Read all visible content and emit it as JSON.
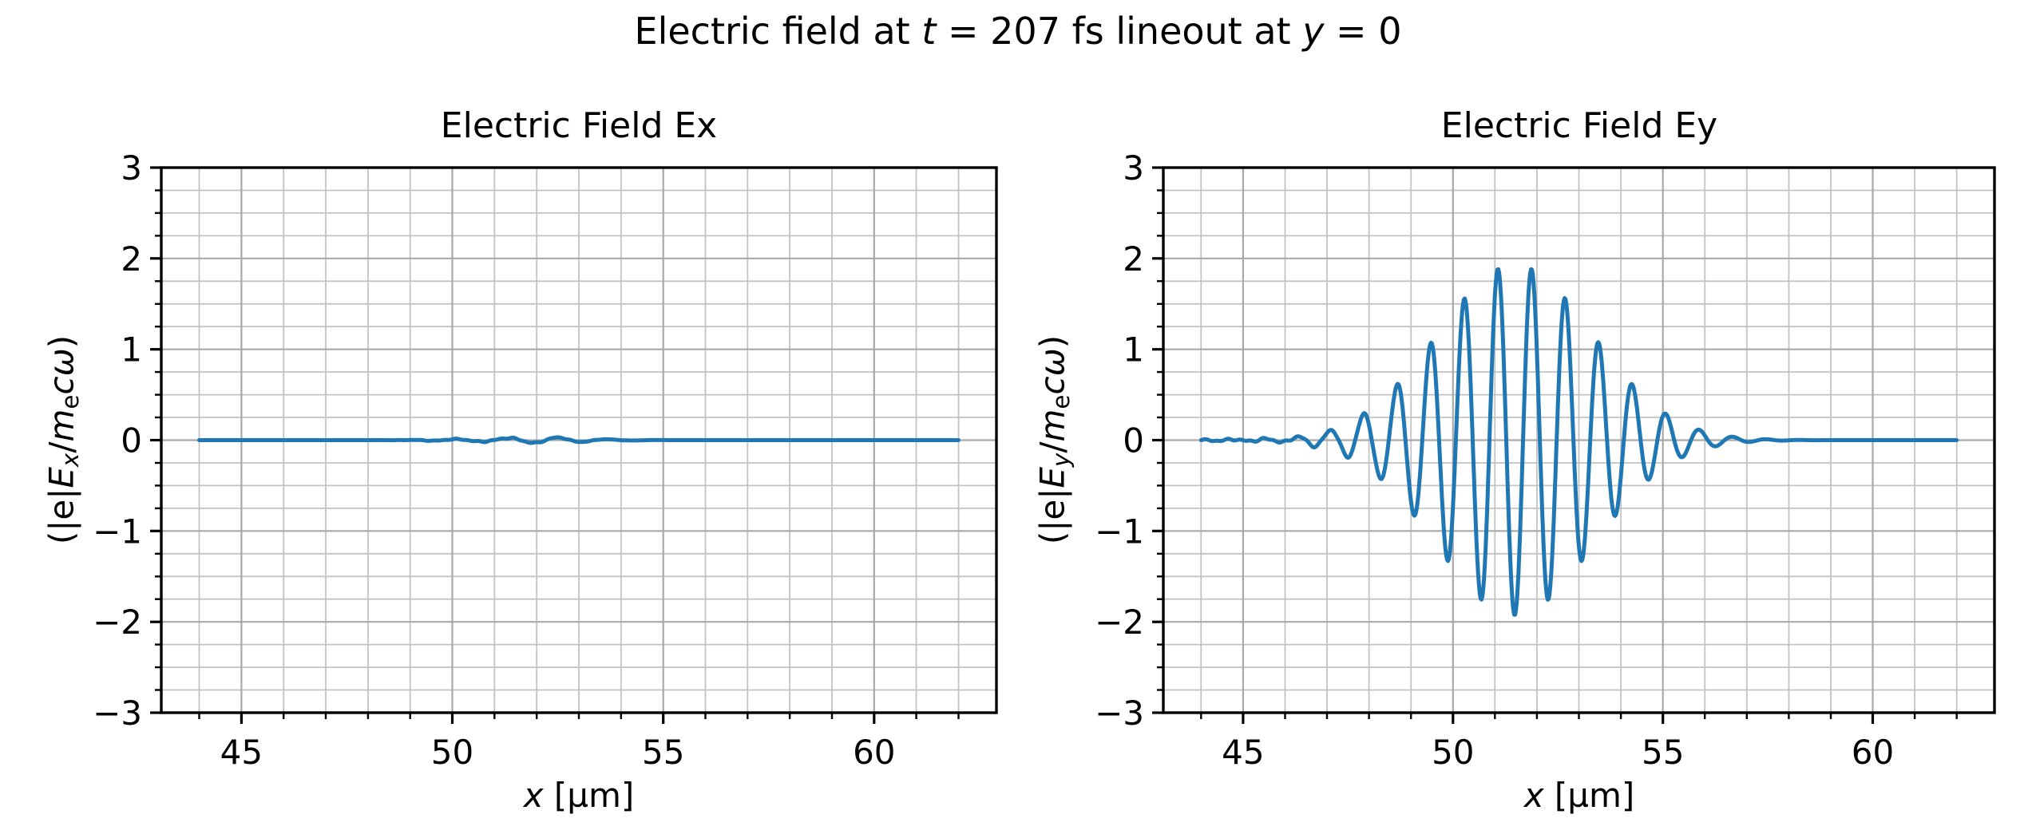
{
  "figure": {
    "suptitle_parts": [
      {
        "t": "Electric field at "
      },
      {
        "t": "t",
        "i": true
      },
      {
        "t": " = 207 fs lineout at "
      },
      {
        "t": "y",
        "i": true
      },
      {
        "t": " = 0"
      }
    ],
    "background_color": "#ffffff",
    "line_color": "#1f77b4",
    "grid_major_color": "#a9a9a9",
    "grid_minor_color": "#c3c3c3",
    "axis_color": "#000000"
  },
  "chart_data": [
    {
      "id": "ex",
      "type": "line",
      "title": "Electric Field Ex",
      "xlabel_parts": [
        {
          "t": "x",
          "i": true
        },
        {
          "t": " [µm]"
        }
      ],
      "ylabel_parts": [
        {
          "t": "(|e|"
        },
        {
          "t": "E",
          "i": true
        },
        {
          "t": "x",
          "i": true,
          "sub": true
        },
        {
          "t": "/"
        },
        {
          "t": "m",
          "i": true
        },
        {
          "t": "e",
          "sub": true
        },
        {
          "t": "c",
          "i": true
        },
        {
          "t": "ω",
          "i": true
        },
        {
          "t": ")"
        }
      ],
      "xlim": [
        43.1,
        62.9
      ],
      "ylim": [
        -3,
        3
      ],
      "xticks": {
        "major": [
          45,
          50,
          55,
          60
        ],
        "labels": [
          "45",
          "50",
          "55",
          "60"
        ],
        "minor_step": 1
      },
      "yticks": {
        "major": [
          -3,
          -2,
          -1,
          0,
          1,
          2,
          3
        ],
        "labels": [
          "−3",
          "−2",
          "−1",
          "0",
          "1",
          "2",
          "3"
        ],
        "minor_step": 0.25
      },
      "grid": "both",
      "legend": "none",
      "series": {
        "name": "Ex",
        "color": "#1f77b4",
        "x_start_um": 44,
        "x_end_um": 62,
        "sample_step": 0.02,
        "model": "gaussian_wavepacket",
        "flat_value": 0,
        "amplitude": -0.03,
        "center_um": 51.9,
        "sigma_um": 1.2,
        "wavelength_um": 1.2,
        "peak_value": 0.03,
        "noise": {
          "amp": 0.012,
          "center_um": 51.3,
          "sigma_um": 1.4,
          "freqs": [
            13.7,
            7.3,
            23.1
          ],
          "phases": [
            0,
            1.3,
            0.7
          ]
        }
      }
    },
    {
      "id": "ey",
      "type": "line",
      "title": "Electric Field Ey",
      "xlabel_parts": [
        {
          "t": "x",
          "i": true
        },
        {
          "t": " [µm]"
        }
      ],
      "ylabel_parts": [
        {
          "t": "(|e|"
        },
        {
          "t": "E",
          "i": true
        },
        {
          "t": "y",
          "i": true,
          "sub": true
        },
        {
          "t": "/"
        },
        {
          "t": "m",
          "i": true
        },
        {
          "t": "e",
          "sub": true
        },
        {
          "t": "c",
          "i": true
        },
        {
          "t": "ω",
          "i": true
        },
        {
          "t": ")"
        }
      ],
      "xlim": [
        43.1,
        62.9
      ],
      "ylim": [
        -3,
        3
      ],
      "xticks": {
        "major": [
          45,
          50,
          55,
          60
        ],
        "labels": [
          "45",
          "50",
          "55",
          "60"
        ],
        "minor_step": 1
      },
      "yticks": {
        "major": [
          -3,
          -2,
          -1,
          0,
          1,
          2,
          3
        ],
        "labels": [
          "−3",
          "−2",
          "−1",
          "0",
          "1",
          "2",
          "3"
        ],
        "minor_step": 0.25
      },
      "grid": "both",
      "legend": "none",
      "series": {
        "name": "Ey",
        "color": "#1f77b4",
        "x_start_um": 44,
        "x_end_um": 62,
        "sample_step": 0.02,
        "model": "gaussian_wavepacket",
        "flat_value": 0,
        "amplitude": -1.93,
        "center_um": 51.47,
        "sigma_um": 1.85,
        "wavelength_um": 0.8,
        "peak_value": 1.93,
        "trough_value": -1.93,
        "packet_visible_span_um": [
          47.5,
          56.0
        ],
        "noise": {
          "amp": 0.022,
          "center_um": 46.5,
          "sigma_um": 2.8,
          "freqs": [
            13.7,
            7.3,
            23.1
          ],
          "phases": [
            0,
            1.3,
            0.7
          ]
        }
      }
    }
  ]
}
